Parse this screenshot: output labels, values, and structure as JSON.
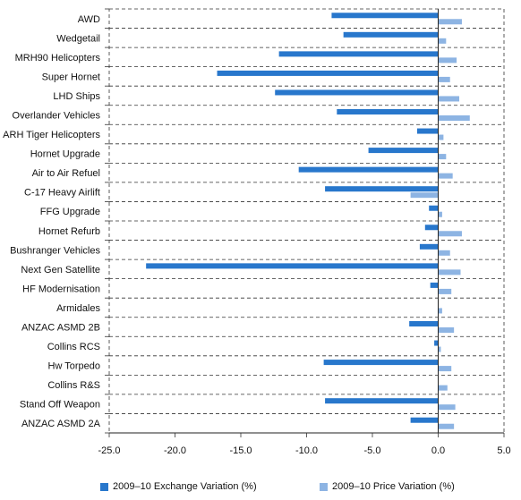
{
  "chart_data": {
    "type": "bar",
    "orientation": "horizontal",
    "categories": [
      "AWD",
      "Wedgetail",
      "MRH90 Helicopters",
      "Super Hornet",
      "LHD Ships",
      "Overlander Vehicles",
      "ARH Tiger Helicopters",
      "Hornet Upgrade",
      "Air to Air Refuel",
      "C-17 Heavy Airlift",
      "FFG Upgrade",
      "Hornet Refurb",
      "Bushranger Vehicles",
      "Next Gen Satellite",
      "HF Modernisation",
      "Armidales",
      "ANZAC ASMD 2B",
      "Collins RCS",
      "Hw Torpedo",
      "Collins R&S",
      "Stand Off  Weapon",
      "ANZAC ASMD 2A"
    ],
    "series": [
      {
        "name": "2009–10 Exchange Variation (%)",
        "color": "#2877cc",
        "values": [
          -8.1,
          -7.2,
          -12.1,
          -16.8,
          -12.4,
          -7.7,
          -1.6,
          -5.3,
          -10.6,
          -8.6,
          -0.7,
          -1.0,
          -1.4,
          -22.2,
          -0.6,
          0.0,
          -2.2,
          -0.3,
          -8.7,
          0.0,
          -8.6,
          -2.1
        ]
      },
      {
        "name": "2009–10 Price Variation (%)",
        "color": "#8db4e3",
        "values": [
          1.8,
          0.6,
          1.4,
          0.9,
          1.6,
          2.4,
          0.4,
          0.6,
          1.1,
          -2.1,
          0.3,
          1.8,
          0.9,
          1.7,
          1.0,
          0.3,
          1.2,
          0.2,
          1.0,
          0.7,
          1.3,
          1.2
        ]
      }
    ],
    "xlim": [
      -25.0,
      5.0
    ],
    "xticks": [
      "-25.0",
      "-20.0",
      "-15.0",
      "-10.0",
      "-5.0",
      "0.0",
      "5.0"
    ],
    "xtick_values": [
      -25,
      -20,
      -15,
      -10,
      -5,
      0,
      5
    ],
    "grid": "horizontal dashed",
    "legend_position": "bottom"
  }
}
